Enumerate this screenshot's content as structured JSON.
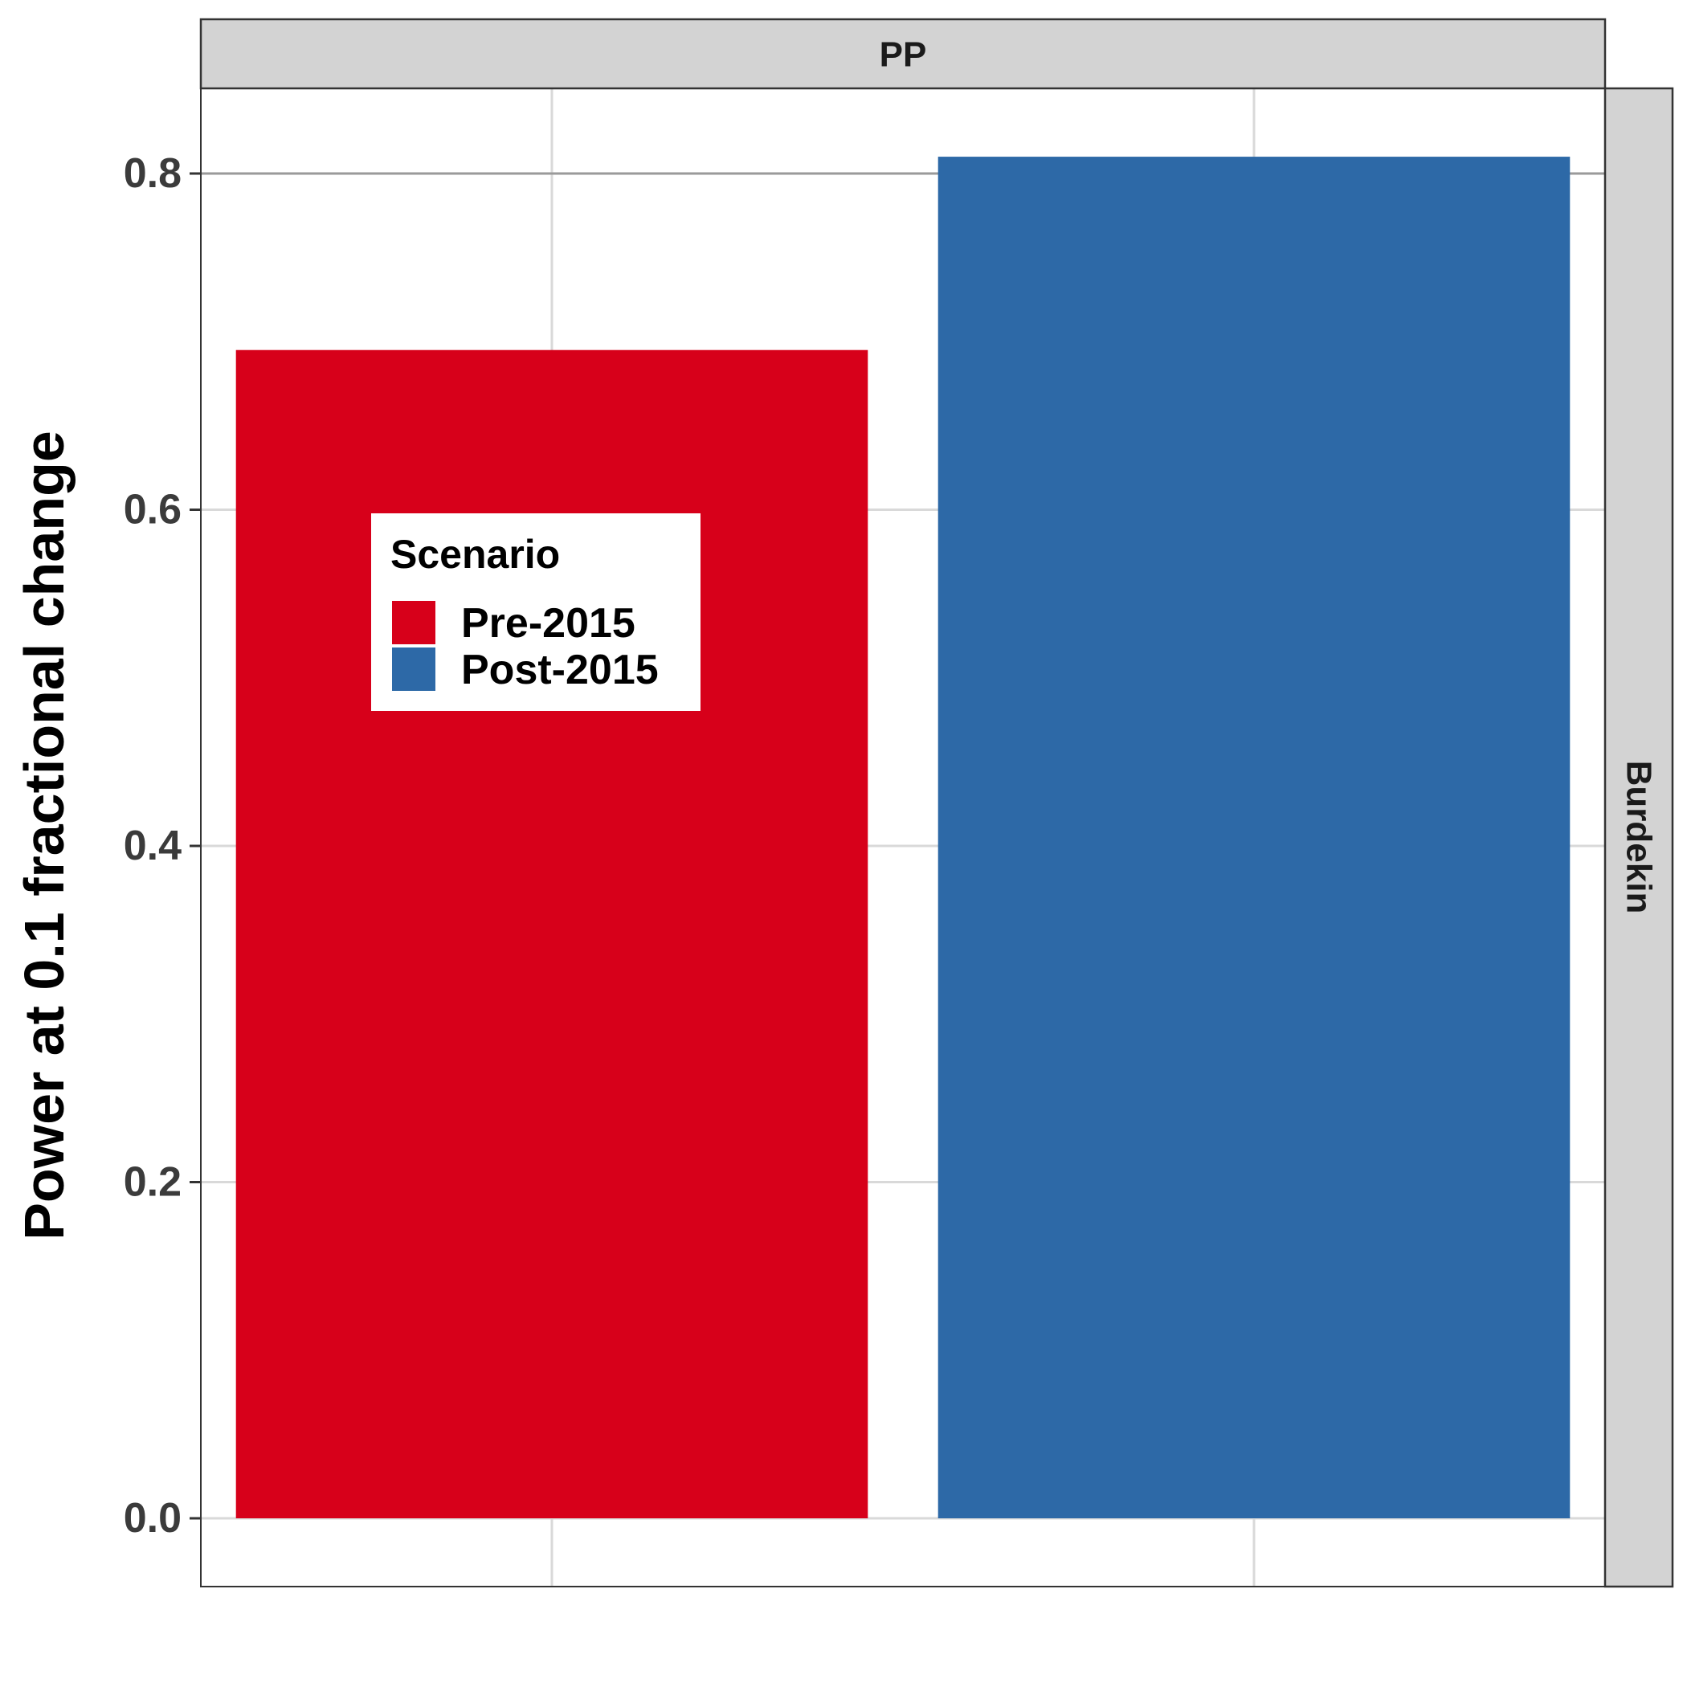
{
  "chart_data": {
    "type": "bar",
    "facet_col_label": "PP",
    "facet_row_label": "Burdekin",
    "categories": [
      "Pre-2015",
      "Post-2015"
    ],
    "values": [
      0.695,
      0.81
    ],
    "colors": [
      "#D7001A",
      "#2D69A7"
    ],
    "ylabel": "Power at 0.1 fractional change",
    "xlabel": "",
    "yticks": [
      "0.0",
      "0.2",
      "0.4",
      "0.6",
      "0.8"
    ],
    "ytick_values": [
      0,
      0.2,
      0.4,
      0.6,
      0.8
    ],
    "ylim": [
      -0.04,
      0.85
    ],
    "grid": true,
    "legend": {
      "title": "Scenario",
      "items": [
        "Pre-2015",
        "Post-2015"
      ],
      "placement": "inside-left"
    }
  }
}
